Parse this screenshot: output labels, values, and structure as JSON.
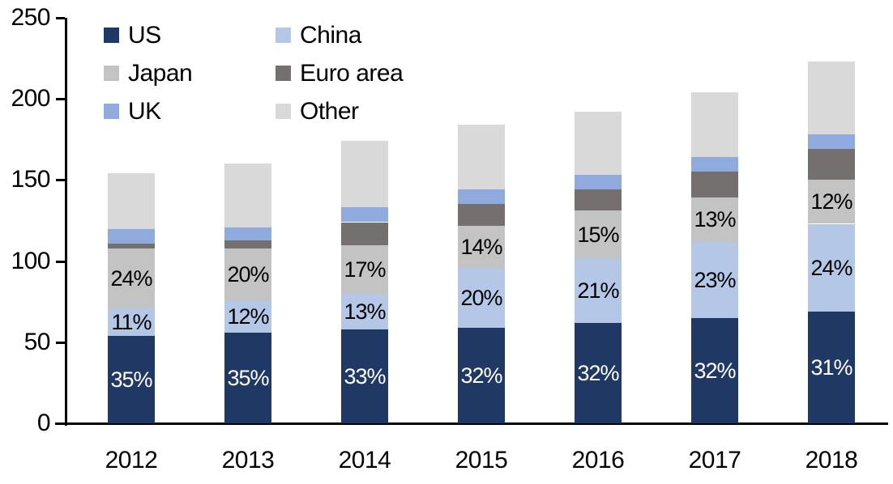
{
  "chart_data": {
    "type": "bar",
    "stacked": true,
    "title": "",
    "xlabel": "",
    "ylabel": "",
    "grid": false,
    "categories": [
      "2012",
      "2013",
      "2014",
      "2015",
      "2016",
      "2017",
      "2018"
    ],
    "series": [
      {
        "name": "US",
        "color": "#1F3864",
        "values": [
          54,
          56,
          58,
          59,
          62,
          65,
          69
        ],
        "labels": [
          "35%",
          "35%",
          "33%",
          "32%",
          "32%",
          "32%",
          "31%"
        ],
        "label_color": "#FFFFFF"
      },
      {
        "name": "China",
        "color": "#B5C7E7",
        "values": [
          17,
          20,
          22,
          37,
          40,
          47,
          54
        ],
        "labels": [
          "11%",
          "12%",
          "13%",
          "20%",
          "21%",
          "23%",
          "24%"
        ],
        "label_color": "#000000"
      },
      {
        "name": "Japan",
        "color": "#C3C3C3",
        "values": [
          37,
          32,
          30,
          26,
          29,
          27,
          27
        ],
        "labels": [
          "24%",
          "20%",
          "17%",
          "14%",
          "15%",
          "13%",
          "12%"
        ],
        "label_color": "#000000"
      },
      {
        "name": "Euro area",
        "color": "#747070",
        "values": [
          3,
          5,
          14,
          13,
          13,
          16,
          19
        ],
        "labels": null,
        "label_color": null
      },
      {
        "name": "UK",
        "color": "#8FAADC",
        "values": [
          9,
          8,
          9,
          9,
          9,
          9,
          9
        ],
        "labels": null,
        "label_color": null
      },
      {
        "name": "Other",
        "color": "#D9D9D9",
        "values": [
          34,
          39,
          41,
          40,
          39,
          40,
          45
        ],
        "labels": null,
        "label_color": null
      }
    ],
    "stack_order_bottom_to_top": [
      "US",
      "China",
      "Japan",
      "Euro area",
      "UK",
      "Other"
    ],
    "totals": [
      154,
      160,
      174,
      184,
      192,
      204,
      223
    ],
    "y_axis": {
      "min": 0,
      "max": 250,
      "tick_step": 50,
      "tick_labels": [
        "0",
        "50",
        "100",
        "150",
        "200",
        "250"
      ]
    },
    "legend": {
      "position": "top-left",
      "columns": 2,
      "order": [
        "US",
        "China",
        "Japan",
        "Euro area",
        "UK",
        "Other"
      ]
    },
    "axis_color": "#000000"
  }
}
